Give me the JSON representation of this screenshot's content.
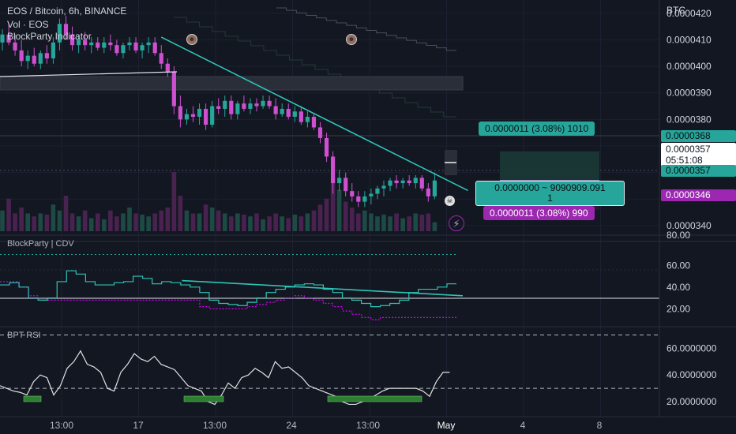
{
  "header": {
    "title": "EOS / Bitcoin, 6h, BINANCE",
    "volume_label": "Vol · EOS",
    "indicator_label": "BlockParty Indicator"
  },
  "price_axis": {
    "currency": "BTC",
    "ticks": [
      "0.0000420",
      "0.0000410",
      "0.0000400",
      "0.0000390",
      "0.0000380",
      "0.0000340"
    ],
    "tags": {
      "target": "0.0000368",
      "last_price": "0.0000357",
      "countdown": "05:51:08",
      "entry": "0.0000357",
      "stop": "0.0000346"
    }
  },
  "position_tool": {
    "target_label": "0.0000011 (3.08%) 1010",
    "ratio_line1": "0.0000000 ~ 9090909.091",
    "ratio_line2": "1",
    "stop_label": "0.0000011 (3.08%) 990"
  },
  "panes": {
    "cdv_title": "BlockParty | CDV",
    "cdv_ticks": [
      "80.00",
      "60.00",
      "40.00",
      "20.00"
    ],
    "rsi_title": "BPT RSI",
    "rsi_ticks": [
      "60.0000000",
      "40.0000000",
      "20.0000000"
    ]
  },
  "time_axis": {
    "labels": [
      "13:00",
      "17",
      "13:00",
      "24",
      "13:00",
      "May",
      "4",
      "8"
    ]
  },
  "colors": {
    "background": "#131722",
    "up": "#26a69a",
    "down": "#ce50d0",
    "trendline": "#2ec4b6",
    "cdv_up": "#2ec4b6",
    "cdv_down": "#d500f9",
    "rsi_line": "#e0e0e0"
  },
  "chart_data": {
    "type": "candlestick",
    "symbol": "EOS / Bitcoin",
    "interval": "6h",
    "exchange": "BINANCE",
    "ylim": [
      3.37e-05,
      4.25e-05
    ],
    "last_price": 3.57e-05,
    "candles": [
      {
        "o": 4.09e-05,
        "h": 4.14e-05,
        "l": 4.06e-05,
        "c": 4.12e-05
      },
      {
        "o": 4.12e-05,
        "h": 4.16e-05,
        "l": 4.08e-05,
        "c": 4.09e-05
      },
      {
        "o": 4.09e-05,
        "h": 4.12e-05,
        "l": 4.04e-05,
        "c": 4.06e-05
      },
      {
        "o": 4.06e-05,
        "h": 4.1e-05,
        "l": 4e-05,
        "c": 4.02e-05
      },
      {
        "o": 4.02e-05,
        "h": 4.06e-05,
        "l": 3.99e-05,
        "c": 4.04e-05
      },
      {
        "o": 4.04e-05,
        "h": 4.07e-05,
        "l": 4e-05,
        "c": 4.01e-05
      },
      {
        "o": 4.01e-05,
        "h": 4.06e-05,
        "l": 3.99e-05,
        "c": 4.05e-05
      },
      {
        "o": 4.05e-05,
        "h": 4.08e-05,
        "l": 4.01e-05,
        "c": 4.03e-05
      },
      {
        "o": 4.03e-05,
        "h": 4.11e-05,
        "l": 4.01e-05,
        "c": 4.09e-05
      },
      {
        "o": 4.09e-05,
        "h": 4.18e-05,
        "l": 4.06e-05,
        "c": 4.16e-05
      },
      {
        "o": 4.16e-05,
        "h": 4.19e-05,
        "l": 4.1e-05,
        "c": 4.12e-05
      },
      {
        "o": 4.12e-05,
        "h": 4.15e-05,
        "l": 4.06e-05,
        "c": 4.08e-05
      },
      {
        "o": 4.08e-05,
        "h": 4.12e-05,
        "l": 4.05e-05,
        "c": 4.1e-05
      },
      {
        "o": 4.1e-05,
        "h": 4.13e-05,
        "l": 4.06e-05,
        "c": 4.08e-05
      },
      {
        "o": 4.08e-05,
        "h": 4.11e-05,
        "l": 4.05e-05,
        "c": 4.09e-05
      },
      {
        "o": 4.09e-05,
        "h": 4.11e-05,
        "l": 4.06e-05,
        "c": 4.07e-05
      },
      {
        "o": 4.07e-05,
        "h": 4.11e-05,
        "l": 4.05e-05,
        "c": 4.09e-05
      },
      {
        "o": 4.09e-05,
        "h": 4.12e-05,
        "l": 4.06e-05,
        "c": 4.08e-05
      },
      {
        "o": 4.08e-05,
        "h": 4.1e-05,
        "l": 4.04e-05,
        "c": 4.05e-05
      },
      {
        "o": 4.05e-05,
        "h": 4.09e-05,
        "l": 4.03e-05,
        "c": 4.08e-05
      },
      {
        "o": 4.08e-05,
        "h": 4.11e-05,
        "l": 4.06e-05,
        "c": 4.09e-05
      },
      {
        "o": 4.09e-05,
        "h": 4.11e-05,
        "l": 4.05e-05,
        "c": 4.06e-05
      },
      {
        "o": 4.06e-05,
        "h": 4.09e-05,
        "l": 4.03e-05,
        "c": 4.08e-05
      },
      {
        "o": 4.08e-05,
        "h": 4.11e-05,
        "l": 4.05e-05,
        "c": 4.09e-05
      },
      {
        "o": 4.09e-05,
        "h": 4.11e-05,
        "l": 4.04e-05,
        "c": 4.05e-05
      },
      {
        "o": 4.05e-05,
        "h": 4.08e-05,
        "l": 3.99e-05,
        "c": 4.01e-05
      },
      {
        "o": 4.01e-05,
        "h": 4.03e-05,
        "l": 3.96e-05,
        "c": 3.98e-05
      },
      {
        "o": 3.98e-05,
        "h": 4e-05,
        "l": 3.82e-05,
        "c": 3.85e-05
      },
      {
        "o": 3.85e-05,
        "h": 3.89e-05,
        "l": 3.77e-05,
        "c": 3.8e-05
      },
      {
        "o": 3.8e-05,
        "h": 3.84e-05,
        "l": 3.78e-05,
        "c": 3.82e-05
      },
      {
        "o": 3.82e-05,
        "h": 3.85e-05,
        "l": 3.79e-05,
        "c": 3.81e-05
      },
      {
        "o": 3.81e-05,
        "h": 3.86e-05,
        "l": 3.78e-05,
        "c": 3.84e-05
      },
      {
        "o": 3.84e-05,
        "h": 3.86e-05,
        "l": 3.76e-05,
        "c": 3.78e-05
      },
      {
        "o": 3.78e-05,
        "h": 3.87e-05,
        "l": 3.77e-05,
        "c": 3.85e-05
      },
      {
        "o": 3.85e-05,
        "h": 3.88e-05,
        "l": 3.82e-05,
        "c": 3.84e-05
      },
      {
        "o": 3.84e-05,
        "h": 3.89e-05,
        "l": 3.81e-05,
        "c": 3.87e-05
      },
      {
        "o": 3.87e-05,
        "h": 3.89e-05,
        "l": 3.8e-05,
        "c": 3.82e-05
      },
      {
        "o": 3.82e-05,
        "h": 3.87e-05,
        "l": 3.8e-05,
        "c": 3.86e-05
      },
      {
        "o": 3.86e-05,
        "h": 3.89e-05,
        "l": 3.83e-05,
        "c": 3.84e-05
      },
      {
        "o": 3.84e-05,
        "h": 3.88e-05,
        "l": 3.82e-05,
        "c": 3.86e-05
      },
      {
        "o": 3.86e-05,
        "h": 3.88e-05,
        "l": 3.83e-05,
        "c": 3.85e-05
      },
      {
        "o": 3.85e-05,
        "h": 3.89e-05,
        "l": 3.84e-05,
        "c": 3.87e-05
      },
      {
        "o": 3.87e-05,
        "h": 3.89e-05,
        "l": 3.84e-05,
        "c": 3.85e-05
      },
      {
        "o": 3.85e-05,
        "h": 3.88e-05,
        "l": 3.8e-05,
        "c": 3.82e-05
      },
      {
        "o": 3.82e-05,
        "h": 3.86e-05,
        "l": 3.81e-05,
        "c": 3.84e-05
      },
      {
        "o": 3.84e-05,
        "h": 3.86e-05,
        "l": 3.8e-05,
        "c": 3.81e-05
      },
      {
        "o": 3.81e-05,
        "h": 3.85e-05,
        "l": 3.79e-05,
        "c": 3.83e-05
      },
      {
        "o": 3.83e-05,
        "h": 3.85e-05,
        "l": 3.78e-05,
        "c": 3.79e-05
      },
      {
        "o": 3.79e-05,
        "h": 3.83e-05,
        "l": 3.77e-05,
        "c": 3.81e-05
      },
      {
        "o": 3.81e-05,
        "h": 3.82e-05,
        "l": 3.76e-05,
        "c": 3.77e-05
      },
      {
        "o": 3.77e-05,
        "h": 3.79e-05,
        "l": 3.71e-05,
        "c": 3.73e-05
      },
      {
        "o": 3.73e-05,
        "h": 3.75e-05,
        "l": 3.64e-05,
        "c": 3.66e-05
      },
      {
        "o": 3.66e-05,
        "h": 3.68e-05,
        "l": 3.52e-05,
        "c": 3.56e-05
      },
      {
        "o": 3.56e-05,
        "h": 3.61e-05,
        "l": 3.53e-05,
        "c": 3.58e-05
      },
      {
        "o": 3.58e-05,
        "h": 3.6e-05,
        "l": 3.51e-05,
        "c": 3.53e-05
      },
      {
        "o": 3.53e-05,
        "h": 3.56e-05,
        "l": 3.49e-05,
        "c": 3.51e-05
      },
      {
        "o": 3.51e-05,
        "h": 3.53e-05,
        "l": 3.47e-05,
        "c": 3.49e-05
      },
      {
        "o": 3.49e-05,
        "h": 3.53e-05,
        "l": 3.47e-05,
        "c": 3.51e-05
      },
      {
        "o": 3.51e-05,
        "h": 3.54e-05,
        "l": 3.48e-05,
        "c": 3.52e-05
      },
      {
        "o": 3.52e-05,
        "h": 3.55e-05,
        "l": 3.5e-05,
        "c": 3.54e-05
      },
      {
        "o": 3.54e-05,
        "h": 3.57e-05,
        "l": 3.51e-05,
        "c": 3.55e-05
      },
      {
        "o": 3.55e-05,
        "h": 3.58e-05,
        "l": 3.53e-05,
        "c": 3.57e-05
      },
      {
        "o": 3.57e-05,
        "h": 3.59e-05,
        "l": 3.54e-05,
        "c": 3.56e-05
      },
      {
        "o": 3.56e-05,
        "h": 3.58e-05,
        "l": 3.54e-05,
        "c": 3.57e-05
      },
      {
        "o": 3.57e-05,
        "h": 3.59e-05,
        "l": 3.55e-05,
        "c": 3.56e-05
      },
      {
        "o": 3.56e-05,
        "h": 3.59e-05,
        "l": 3.54e-05,
        "c": 3.58e-05
      },
      {
        "o": 3.58e-05,
        "h": 3.59e-05,
        "l": 3.53e-05,
        "c": 3.54e-05
      },
      {
        "o": 3.54e-05,
        "h": 3.56e-05,
        "l": 3.49e-05,
        "c": 3.51e-05
      },
      {
        "o": 3.51e-05,
        "h": 3.6e-05,
        "l": 3.5e-05,
        "c": 3.57e-05
      }
    ],
    "volume": [
      0.35,
      0.55,
      0.3,
      0.4,
      0.3,
      0.25,
      0.3,
      0.28,
      0.45,
      0.35,
      0.6,
      0.3,
      0.25,
      0.35,
      0.22,
      0.3,
      0.2,
      0.35,
      0.25,
      0.3,
      0.4,
      0.3,
      0.28,
      0.25,
      0.3,
      0.35,
      0.4,
      1.0,
      0.6,
      0.35,
      0.3,
      0.3,
      0.45,
      0.4,
      0.35,
      0.3,
      0.25,
      0.3,
      0.28,
      0.25,
      0.3,
      0.2,
      0.25,
      0.3,
      0.25,
      0.22,
      0.28,
      0.25,
      0.3,
      0.35,
      0.45,
      0.55,
      0.9,
      0.7,
      0.5,
      0.4,
      0.3,
      0.35,
      0.3,
      0.25,
      0.28,
      0.25,
      0.3,
      0.22,
      0.25,
      0.3,
      0.28,
      0.3,
      0.15
    ],
    "trendline": [
      [
        25,
        4.11e-05
      ],
      [
        71,
        3.55e-05
      ]
    ],
    "position": {
      "entry": 3.57e-05,
      "target": 3.68e-05,
      "stop": 3.46e-05
    },
    "cdv": {
      "ylim": [
        5,
        82
      ],
      "upper_series": [
        42,
        44,
        40,
        30,
        28,
        30,
        45,
        55,
        52,
        45,
        42,
        42,
        44,
        45,
        50,
        48,
        43,
        45,
        44,
        42,
        40,
        35,
        28,
        25,
        24,
        23,
        26,
        30,
        35,
        38,
        40,
        42,
        43,
        42,
        38,
        35,
        30,
        28,
        25,
        22,
        23,
        25,
        28,
        35,
        38,
        38,
        40,
        43
      ],
      "lower_series": [
        45,
        45,
        40,
        32,
        28,
        28,
        28,
        28,
        28,
        28,
        28,
        28,
        28,
        28,
        28,
        28,
        28,
        28,
        28,
        28,
        28,
        22,
        20,
        20,
        20,
        20,
        22,
        24,
        26,
        28,
        30,
        32,
        30,
        28,
        25,
        22,
        18,
        15,
        12,
        10,
        12,
        12,
        12,
        12,
        12,
        12,
        12,
        12
      ],
      "trendline": [
        [
          10,
          46
        ],
        [
          47,
          32
        ]
      ]
    },
    "rsi": {
      "ylim": [
        10,
        75
      ],
      "levels": [
        70,
        30
      ],
      "values": [
        32,
        30,
        28,
        27,
        25,
        35,
        40,
        38,
        25,
        32,
        45,
        50,
        58,
        48,
        46,
        42,
        30,
        28,
        42,
        48,
        56,
        52,
        50,
        54,
        48,
        46,
        44,
        38,
        32,
        30,
        28,
        20,
        18,
        25,
        34,
        30,
        38,
        40,
        45,
        42,
        38,
        50,
        45,
        46,
        42,
        38,
        32,
        30,
        28,
        26,
        24,
        20,
        18,
        18,
        20,
        22,
        25,
        28,
        30,
        30,
        30,
        30,
        30,
        28,
        24,
        35,
        42,
        42
      ]
    }
  }
}
